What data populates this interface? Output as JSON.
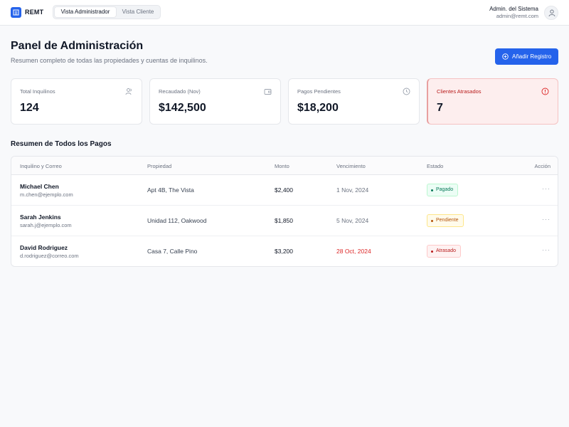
{
  "app": {
    "name": "REMT"
  },
  "view_toggle": {
    "admin": "Vista Administrador",
    "client": "Vista Cliente"
  },
  "user": {
    "name": "Admin. del Sistema",
    "email": "admin@remt.com"
  },
  "header": {
    "title": "Panel de Administración",
    "subtitle": "Resumen completo de todas las propiedades y cuentas de inquilinos.",
    "add_button": "Añadir Registro"
  },
  "stats": [
    {
      "label": "Total Inquilinos",
      "value": "124",
      "icon": "users-icon"
    },
    {
      "label": "Recaudado (Nov)",
      "value": "$142,500",
      "icon": "wallet-icon"
    },
    {
      "label": "Pagos Pendientes",
      "value": "$18,200",
      "icon": "clock-icon"
    },
    {
      "label": "Clientes Atrasados",
      "value": "7",
      "icon": "alert-circle-icon"
    }
  ],
  "section_title": "Resumen de Todos los Pagos",
  "table": {
    "headers": [
      "Inquilino y Correo",
      "Propiedad",
      "Monto",
      "Vencimiento",
      "Estado",
      "Acción"
    ],
    "rows": [
      {
        "name": "Michael Chen",
        "email": "m.chen@ejemplo.com",
        "property": "Apt 4B, The Vista",
        "amount": "$2,400",
        "due": "1 Nov, 2024",
        "status": "Pagado"
      },
      {
        "name": "Sarah Jenkins",
        "email": "sarah.j@ejemplo.com",
        "property": "Unidad 112, Oakwood",
        "amount": "$1,850",
        "due": "5 Nov, 2024",
        "status": "Pendiente"
      },
      {
        "name": "David Rodriguez",
        "email": "d.rodriguez@correo.com",
        "property": "Casa 7, Calle Pino",
        "amount": "$3,200",
        "due": "28 Oct, 2024",
        "status": "Atrasado"
      }
    ],
    "action_glyph": "···"
  },
  "colors": {
    "accent": "#2563eb",
    "paid": "#047857",
    "pending": "#b45309",
    "late": "#b91c1c"
  }
}
